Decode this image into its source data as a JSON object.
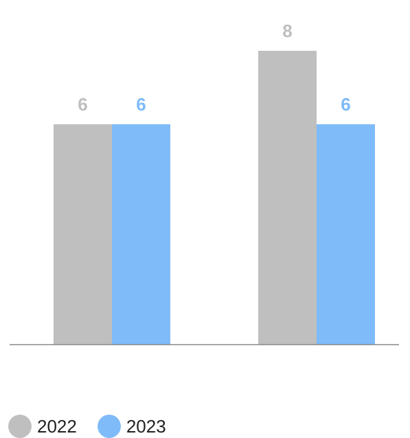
{
  "chart_data": {
    "type": "bar",
    "categories": [
      "",
      ""
    ],
    "series": [
      {
        "name": "2022",
        "values": [
          6,
          8
        ],
        "color": "#bfbfbf"
      },
      {
        "name": "2023",
        "values": [
          6,
          6
        ],
        "color": "#7fbbf8"
      }
    ],
    "ylim": [
      0,
      10
    ],
    "grid": false,
    "legend_placement": "bottom-left",
    "data_labels": true
  }
}
